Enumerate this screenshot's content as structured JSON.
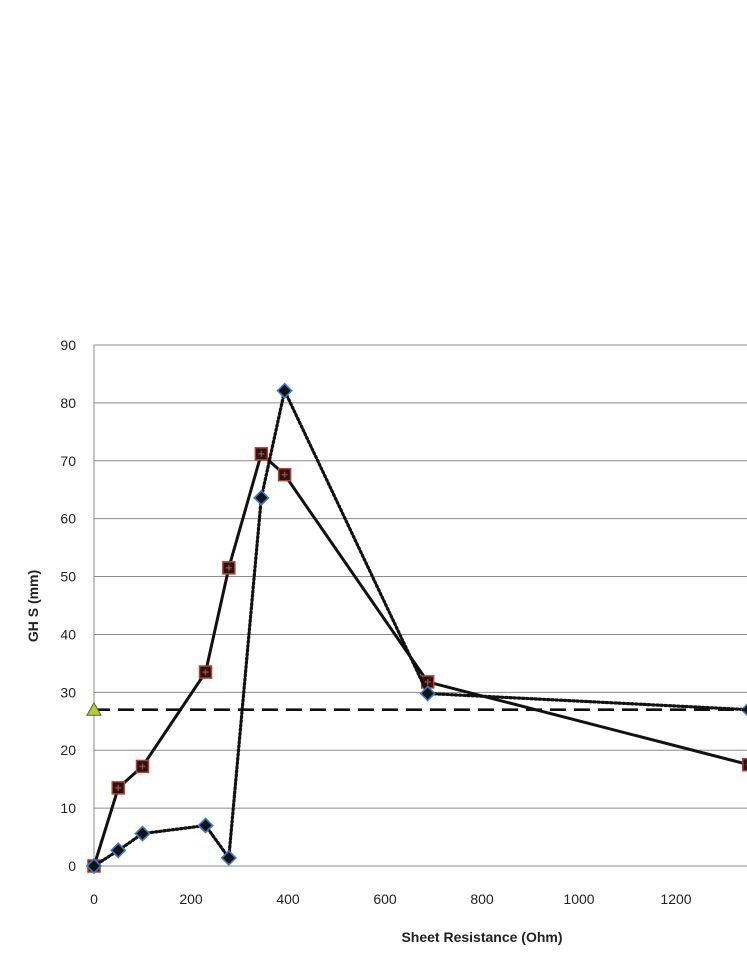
{
  "chart_data": {
    "type": "line",
    "title": "",
    "xlabel": "Sheet Resistance (Ohm)",
    "ylabel": "GH S (mm)",
    "xlim": [
      0,
      1350
    ],
    "ylim": [
      0,
      90
    ],
    "xticks": [
      0,
      200,
      400,
      600,
      800,
      1000,
      1200
    ],
    "yticks": [
      0,
      10,
      20,
      30,
      40,
      50,
      60,
      70,
      80,
      90
    ],
    "grid": "horizontal",
    "legend": "none",
    "series": [
      {
        "style": "solid",
        "marker": "square",
        "marker_color": "#c0392b",
        "points": [
          [
            0,
            0
          ],
          [
            50,
            13.5
          ],
          [
            100,
            17.2
          ],
          [
            230,
            33.5
          ],
          [
            278,
            51.5
          ],
          [
            345,
            71.2
          ],
          [
            393,
            67.6
          ],
          [
            688,
            31.8
          ],
          [
            1350,
            17.5
          ]
        ]
      },
      {
        "style": "dotted",
        "marker": "diamond",
        "marker_color": "#3a78c8",
        "points": [
          [
            0,
            0
          ],
          [
            50,
            2.7
          ],
          [
            100,
            5.6
          ],
          [
            230,
            7.0
          ],
          [
            278,
            1.4
          ],
          [
            345,
            63.6
          ],
          [
            393,
            82.1
          ],
          [
            688,
            29.8
          ],
          [
            1350,
            27.0
          ]
        ]
      },
      {
        "style": "dashed",
        "marker": "triangle",
        "marker_color": "#b7c842",
        "points": [
          [
            0,
            27.0
          ],
          [
            1350,
            27.0
          ]
        ]
      }
    ]
  }
}
